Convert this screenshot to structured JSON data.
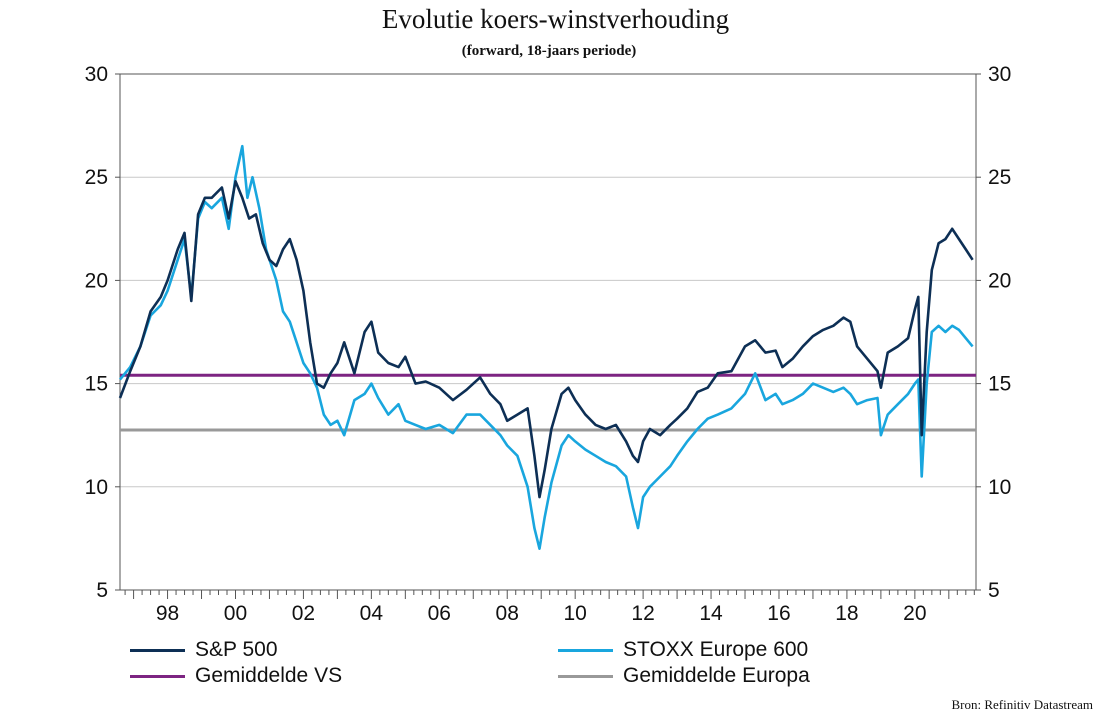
{
  "chart_data": {
    "type": "line",
    "title": "Evolutie koers-winstverhouding",
    "subtitle": "(forward, 18-jaars periode)",
    "source": "Bron: Refinitiv Datastream",
    "x_range": [
      1996.6,
      2021.8
    ],
    "ylim": [
      5,
      30
    ],
    "y_ticks": [
      "5",
      "10",
      "15",
      "20",
      "25",
      "30"
    ],
    "x_ticks": [
      {
        "label": "98",
        "year": 1998
      },
      {
        "label": "00",
        "year": 2000
      },
      {
        "label": "02",
        "year": 2002
      },
      {
        "label": "04",
        "year": 2004
      },
      {
        "label": "06",
        "year": 2006
      },
      {
        "label": "08",
        "year": 2008
      },
      {
        "label": "10",
        "year": 2010
      },
      {
        "label": "12",
        "year": 2012
      },
      {
        "label": "14",
        "year": 2014
      },
      {
        "label": "16",
        "year": 2016
      },
      {
        "label": "18",
        "year": 2018
      },
      {
        "label": "20",
        "year": 2020
      }
    ],
    "grid": true,
    "legend_position": "bottom",
    "series": [
      {
        "name": "S&P 500",
        "color": "#0d2f55",
        "x": [
          1996.6,
          1996.9,
          1997.2,
          1997.5,
          1997.8,
          1998.0,
          1998.3,
          1998.5,
          1998.7,
          1998.9,
          1999.1,
          1999.3,
          1999.6,
          1999.8,
          2000.0,
          2000.2,
          2000.4,
          2000.6,
          2000.8,
          2001.0,
          2001.2,
          2001.4,
          2001.6,
          2001.8,
          2002.0,
          2002.2,
          2002.4,
          2002.6,
          2002.8,
          2003.0,
          2003.2,
          2003.5,
          2003.8,
          2004.0,
          2004.2,
          2004.5,
          2004.8,
          2005.0,
          2005.3,
          2005.6,
          2006.0,
          2006.4,
          2006.8,
          2007.2,
          2007.5,
          2007.8,
          2008.0,
          2008.3,
          2008.6,
          2008.8,
          2008.95,
          2009.1,
          2009.3,
          2009.6,
          2009.8,
          2010.0,
          2010.3,
          2010.6,
          2010.9,
          2011.2,
          2011.5,
          2011.7,
          2011.85,
          2012.0,
          2012.2,
          2012.5,
          2012.8,
          2013.0,
          2013.3,
          2013.6,
          2013.9,
          2014.2,
          2014.6,
          2015.0,
          2015.3,
          2015.6,
          2015.9,
          2016.1,
          2016.4,
          2016.7,
          2017.0,
          2017.3,
          2017.6,
          2017.9,
          2018.1,
          2018.3,
          2018.6,
          2018.9,
          2019.0,
          2019.2,
          2019.5,
          2019.8,
          2020.0,
          2020.1,
          2020.2,
          2020.35,
          2020.5,
          2020.7,
          2020.9,
          2021.1,
          2021.3,
          2021.5,
          2021.7
        ],
        "y": [
          14.3,
          15.6,
          16.8,
          18.5,
          19.2,
          20.0,
          21.5,
          22.3,
          19.0,
          23.2,
          24.0,
          24.0,
          24.5,
          23.0,
          24.8,
          24.0,
          23.0,
          23.2,
          21.8,
          21.0,
          20.7,
          21.5,
          22.0,
          21.0,
          19.5,
          17.0,
          15.0,
          14.8,
          15.5,
          16.0,
          17.0,
          15.5,
          17.5,
          18.0,
          16.5,
          16.0,
          15.8,
          16.3,
          15.0,
          15.1,
          14.8,
          14.2,
          14.7,
          15.3,
          14.5,
          14.0,
          13.2,
          13.5,
          13.8,
          11.5,
          9.5,
          10.8,
          12.8,
          14.5,
          14.8,
          14.2,
          13.5,
          13.0,
          12.8,
          13.0,
          12.2,
          11.5,
          11.2,
          12.2,
          12.8,
          12.5,
          13.0,
          13.3,
          13.8,
          14.6,
          14.8,
          15.5,
          15.6,
          16.8,
          17.1,
          16.5,
          16.6,
          15.8,
          16.2,
          16.8,
          17.3,
          17.6,
          17.8,
          18.2,
          18.0,
          16.8,
          16.2,
          15.6,
          14.8,
          16.5,
          16.8,
          17.2,
          18.6,
          19.2,
          12.5,
          17.5,
          20.5,
          21.8,
          22.0,
          22.5,
          22.0,
          21.5,
          21.0
        ]
      },
      {
        "name": "STOXX Europe 600",
        "color": "#19a6de",
        "x": [
          1996.6,
          1996.9,
          1997.2,
          1997.5,
          1997.8,
          1998.0,
          1998.3,
          1998.5,
          1998.7,
          1998.9,
          1999.1,
          1999.3,
          1999.6,
          1999.8,
          2000.0,
          2000.2,
          2000.35,
          2000.5,
          2000.7,
          2000.9,
          2001.2,
          2001.4,
          2001.6,
          2001.8,
          2002.0,
          2002.2,
          2002.4,
          2002.6,
          2002.8,
          2003.0,
          2003.2,
          2003.5,
          2003.8,
          2004.0,
          2004.2,
          2004.5,
          2004.8,
          2005.0,
          2005.3,
          2005.6,
          2006.0,
          2006.4,
          2006.8,
          2007.2,
          2007.5,
          2007.8,
          2008.0,
          2008.3,
          2008.6,
          2008.8,
          2008.95,
          2009.1,
          2009.3,
          2009.6,
          2009.8,
          2010.0,
          2010.3,
          2010.6,
          2010.9,
          2011.2,
          2011.5,
          2011.7,
          2011.85,
          2012.0,
          2012.2,
          2012.5,
          2012.8,
          2013.0,
          2013.3,
          2013.6,
          2013.9,
          2014.2,
          2014.6,
          2015.0,
          2015.3,
          2015.6,
          2015.9,
          2016.1,
          2016.4,
          2016.7,
          2017.0,
          2017.3,
          2017.6,
          2017.9,
          2018.1,
          2018.3,
          2018.6,
          2018.9,
          2019.0,
          2019.2,
          2019.5,
          2019.8,
          2020.0,
          2020.1,
          2020.2,
          2020.35,
          2020.5,
          2020.7,
          2020.9,
          2021.1,
          2021.3,
          2021.5,
          2021.7
        ],
        "y": [
          15.2,
          15.8,
          16.8,
          18.3,
          18.8,
          19.5,
          21.0,
          22.0,
          19.2,
          23.0,
          23.8,
          23.5,
          24.0,
          22.5,
          25.0,
          26.5,
          24.0,
          25.0,
          23.5,
          21.5,
          20.0,
          18.5,
          18.0,
          17.0,
          16.0,
          15.5,
          14.8,
          13.5,
          13.0,
          13.2,
          12.5,
          14.2,
          14.5,
          15.0,
          14.3,
          13.5,
          14.0,
          13.2,
          13.0,
          12.8,
          13.0,
          12.6,
          13.5,
          13.5,
          13.0,
          12.5,
          12.0,
          11.5,
          10.0,
          8.0,
          7.0,
          8.5,
          10.2,
          12.0,
          12.5,
          12.2,
          11.8,
          11.5,
          11.2,
          11.0,
          10.5,
          9.0,
          8.0,
          9.5,
          10.0,
          10.5,
          11.0,
          11.5,
          12.2,
          12.8,
          13.3,
          13.5,
          13.8,
          14.5,
          15.5,
          14.2,
          14.5,
          14.0,
          14.2,
          14.5,
          15.0,
          14.8,
          14.6,
          14.8,
          14.5,
          14.0,
          14.2,
          14.3,
          12.5,
          13.5,
          14.0,
          14.5,
          15.0,
          15.2,
          10.5,
          15.0,
          17.5,
          17.8,
          17.5,
          17.8,
          17.6,
          17.2,
          16.8
        ]
      },
      {
        "name": "Gemiddelde VS",
        "color": "#7d2482",
        "x": [
          1996.6,
          2021.8
        ],
        "y": [
          15.4,
          15.4
        ]
      },
      {
        "name": "Gemiddelde Europa",
        "color": "#999999",
        "x": [
          1996.6,
          2021.8
        ],
        "y": [
          12.75,
          12.75
        ]
      }
    ]
  }
}
